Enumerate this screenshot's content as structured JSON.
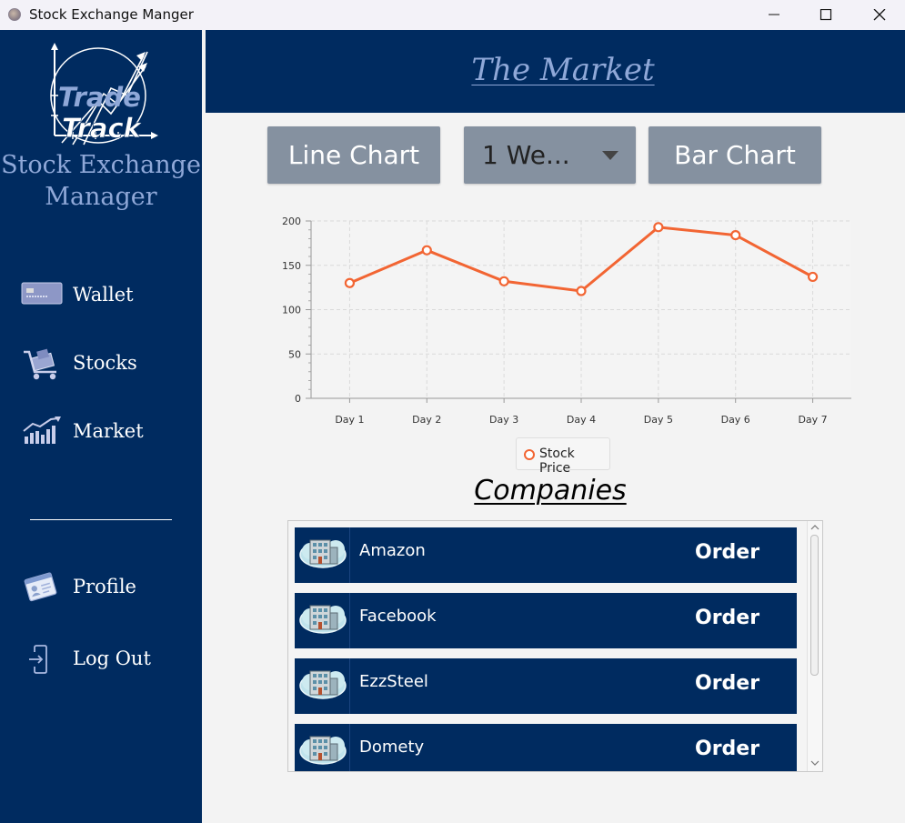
{
  "window": {
    "title": "Stock Exchange Manger",
    "icon": "app-icon"
  },
  "sidebar": {
    "logo": {
      "line1": "Trade",
      "line2": "Track"
    },
    "brand_line1": "Stock Exchange",
    "brand_line2": "Manager",
    "items": [
      {
        "label": "Wallet",
        "icon": "credit-card-icon"
      },
      {
        "label": "Stocks",
        "icon": "cart-icon"
      },
      {
        "label": "Market",
        "icon": "market-chart-icon"
      },
      {
        "label": "Profile",
        "icon": "profile-card-icon"
      },
      {
        "label": "Log Out",
        "icon": "logout-icon"
      }
    ]
  },
  "header": {
    "title": "The Market"
  },
  "toolbar": {
    "line_chart_label": "Line Chart",
    "period_value": "1 We...",
    "bar_chart_label": "Bar Chart"
  },
  "chart_data": {
    "type": "line",
    "x": [
      "Day 1",
      "Day 2",
      "Day 3",
      "Day 4",
      "Day 5",
      "Day 6",
      "Day 7"
    ],
    "series": [
      {
        "name": "Stock Price",
        "values": [
          130,
          167,
          132,
          121,
          193,
          184,
          137
        ],
        "color": "#f26533"
      }
    ],
    "yticks": [
      0,
      50,
      100,
      150,
      200
    ],
    "ylim": [
      0,
      200
    ],
    "grid": true,
    "legend": "bottom-center"
  },
  "companies": {
    "title": "Companies",
    "rows": [
      {
        "name": "Amazon",
        "order_label": "Order",
        "icon": "building-icon"
      },
      {
        "name": "Facebook",
        "order_label": "Order",
        "icon": "building-icon"
      },
      {
        "name": "EzzSteel",
        "order_label": "Order",
        "icon": "building-icon"
      },
      {
        "name": "Domety",
        "order_label": "Order",
        "icon": "building-icon"
      }
    ]
  }
}
